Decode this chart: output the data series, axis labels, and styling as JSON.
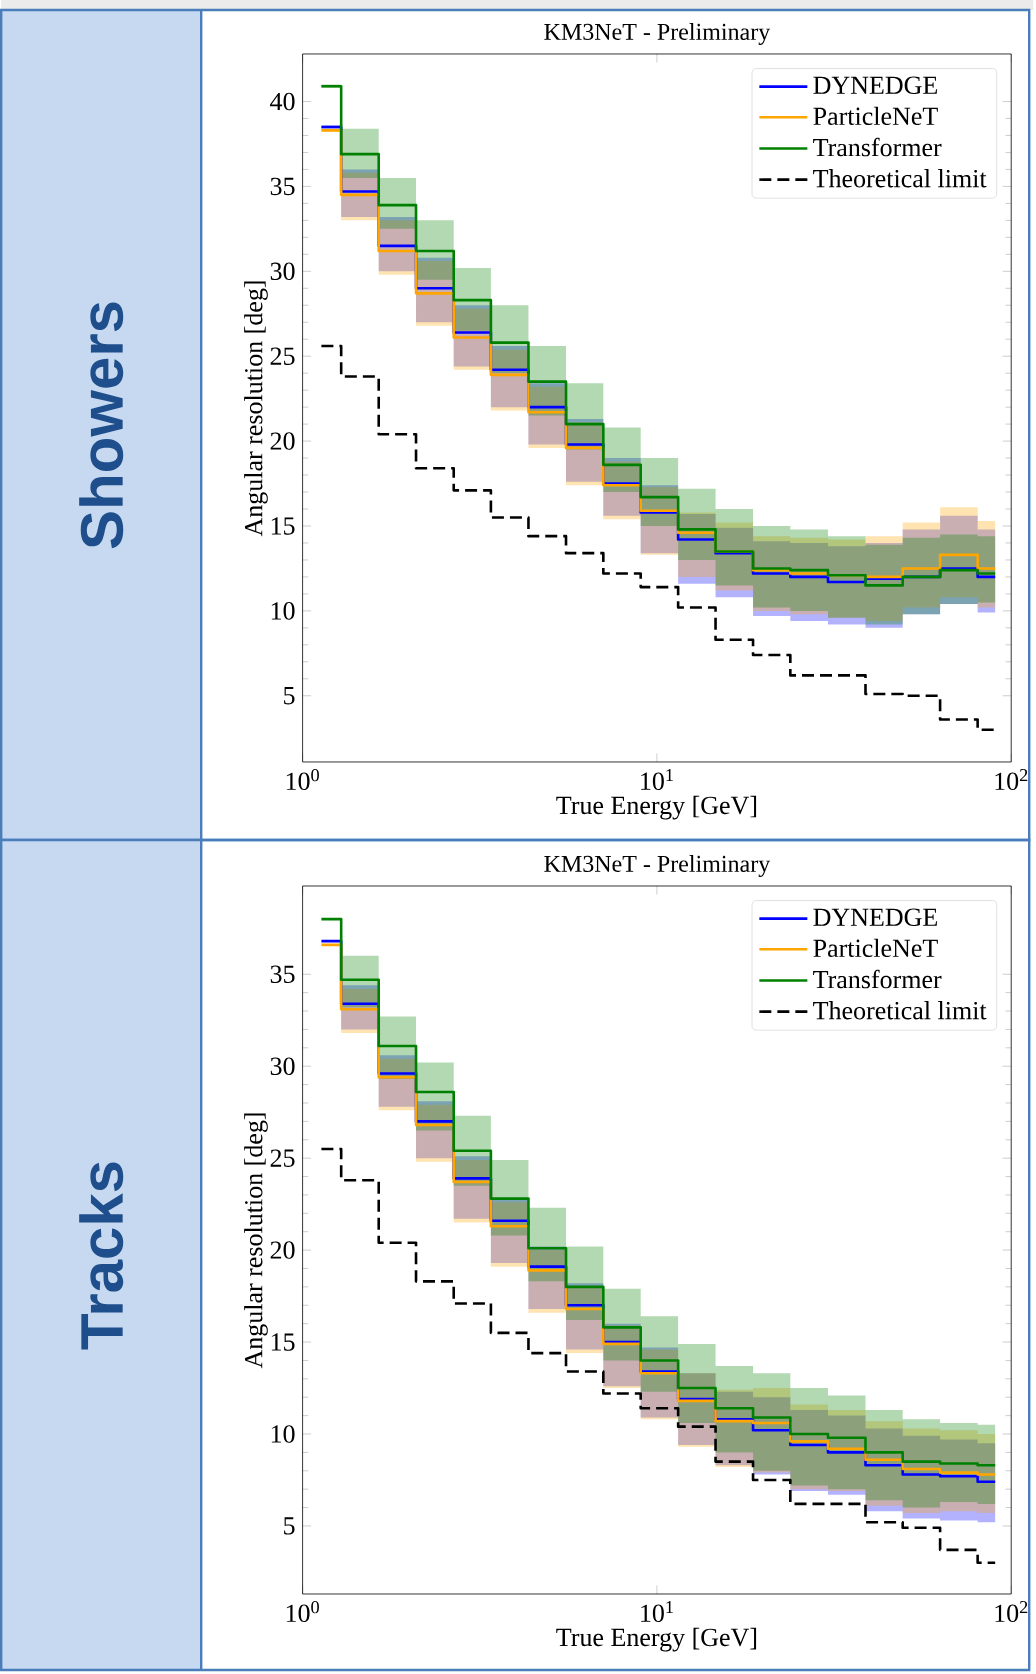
{
  "chart_data": [
    {
      "type": "step",
      "title": "KM3NeT - Preliminary",
      "xlabel": "True Energy [GeV]",
      "ylabel": "Angular resolution [deg]",
      "annotations": [
        "Showers"
      ],
      "log": "x",
      "legend": "top right",
      "xlim": [
        1,
        100
      ],
      "ylim": [
        1.1,
        42.8
      ],
      "xticks": [
        {
          "value": 1,
          "label": "10$^{0}$"
        },
        {
          "value": 10,
          "label": "10$^{1}$"
        },
        {
          "value": 100,
          "label": "10$^{2}$"
        }
      ],
      "yticks": [
        5,
        10,
        15,
        20,
        25,
        30,
        35,
        40
      ],
      "x": [
        1.13,
        1.285,
        1.64,
        2.09,
        2.67,
        3.4,
        4.34,
        5.54,
        7.06,
        9.0,
        11.48,
        14.64,
        18.68,
        23.8,
        30.4,
        38.8,
        49.4,
        63.0,
        80.4,
        90.1
      ],
      "series": [
        {
          "name": "DYNEDGE",
          "color": "#0000ff",
          "values": [
            38.5,
            34.7,
            31.5,
            29.0,
            26.4,
            24.2,
            22.0,
            19.8,
            17.5,
            15.8,
            14.2,
            13.4,
            12.2,
            12.0,
            11.7,
            11.9,
            12.0,
            12.5,
            12.0,
            12.0
          ],
          "lower": [
            38.4,
            33.2,
            30.0,
            27.0,
            24.4,
            22.0,
            19.8,
            17.6,
            15.6,
            13.4,
            11.6,
            10.8,
            9.7,
            9.4,
            9.2,
            9.0,
            9.8,
            10.4,
            9.9,
            9.9
          ],
          "upper": [
            38.6,
            36.0,
            33.2,
            30.8,
            28.0,
            25.6,
            23.4,
            21.3,
            19.0,
            17.4,
            15.7,
            14.9,
            14.1,
            14.0,
            13.8,
            14.0,
            14.8,
            15.6,
            14.8,
            14.8
          ]
        },
        {
          "name": "ParticleNeT",
          "color": "#ffa500",
          "values": [
            38.3,
            34.5,
            31.2,
            28.7,
            26.1,
            23.9,
            21.7,
            19.6,
            17.4,
            15.9,
            14.6,
            13.5,
            12.4,
            12.2,
            12.1,
            12.0,
            12.5,
            13.3,
            12.5,
            12.5
          ],
          "lower": [
            38.2,
            33.0,
            29.8,
            26.8,
            24.2,
            21.8,
            19.6,
            17.4,
            15.4,
            13.3,
            12.0,
            11.2,
            10.0,
            9.8,
            9.6,
            9.4,
            10.2,
            10.8,
            10.2,
            10.2
          ],
          "upper": [
            38.4,
            35.8,
            33.0,
            30.6,
            27.8,
            25.4,
            23.2,
            21.1,
            18.8,
            17.3,
            15.8,
            15.2,
            14.4,
            14.3,
            14.2,
            14.4,
            15.2,
            16.1,
            15.3,
            15.3
          ]
        },
        {
          "name": "Transformer",
          "color": "#008000",
          "values": [
            40.9,
            36.9,
            33.9,
            31.2,
            28.3,
            25.8,
            23.5,
            21.0,
            18.6,
            16.7,
            14.8,
            13.5,
            12.5,
            12.4,
            12.1,
            11.5,
            12.0,
            12.4,
            12.2,
            12.2
          ],
          "lower": [
            40.8,
            35.5,
            32.5,
            29.5,
            26.5,
            24.0,
            21.5,
            19.5,
            17.0,
            15.0,
            13.0,
            11.5,
            10.2,
            10.0,
            9.6,
            9.2,
            9.8,
            10.4,
            10.5,
            10.5
          ],
          "upper": [
            41.0,
            38.4,
            35.5,
            33.0,
            30.2,
            28.0,
            25.6,
            23.4,
            20.8,
            19.0,
            17.2,
            16.0,
            15.0,
            14.8,
            14.4,
            13.9,
            14.3,
            14.5,
            14.4,
            14.4
          ]
        },
        {
          "name": "Theoretical limit",
          "color": "#000000",
          "line_style": "dashed",
          "values": [
            25.6,
            23.8,
            20.4,
            18.4,
            17.1,
            15.5,
            14.4,
            13.4,
            12.2,
            11.4,
            10.2,
            8.3,
            7.4,
            6.2,
            6.2,
            5.1,
            5.0,
            3.6,
            3.0,
            3.0
          ]
        }
      ]
    },
    {
      "type": "step",
      "title": "KM3NeT - Preliminary",
      "xlabel": "True Energy [GeV]",
      "ylabel": "Angular resolution [deg]",
      "annotations": [
        "Tracks"
      ],
      "log": "x",
      "legend": "top right",
      "xlim": [
        1,
        100
      ],
      "ylim": [
        1.3,
        39.8
      ],
      "xticks": [
        {
          "value": 1,
          "label": "10$^{0}$"
        },
        {
          "value": 10,
          "label": "10$^{1}$"
        },
        {
          "value": 100,
          "label": "10$^{2}$"
        }
      ],
      "yticks": [
        5,
        10,
        15,
        20,
        25,
        30,
        35
      ],
      "x": [
        1.13,
        1.285,
        1.64,
        2.09,
        2.67,
        3.4,
        4.34,
        5.54,
        7.06,
        9.0,
        11.48,
        14.64,
        18.68,
        23.8,
        30.4,
        38.8,
        49.4,
        63.0,
        80.4,
        90.1
      ],
      "series": [
        {
          "name": "DYNEDGE",
          "color": "#0000ff",
          "values": [
            36.8,
            33.4,
            29.6,
            27.0,
            23.9,
            21.6,
            19.1,
            17.0,
            15.0,
            13.4,
            11.9,
            10.8,
            10.2,
            9.4,
            9.0,
            8.3,
            7.8,
            7.7,
            7.4,
            7.4
          ],
          "lower": [
            36.8,
            32.0,
            27.8,
            25.0,
            21.7,
            19.3,
            16.8,
            14.6,
            12.6,
            10.9,
            9.4,
            8.3,
            7.8,
            6.9,
            6.7,
            5.8,
            5.4,
            5.3,
            5.2,
            5.2
          ],
          "upper": [
            36.8,
            34.4,
            30.6,
            28.1,
            25.1,
            22.8,
            20.2,
            18.2,
            16.0,
            14.7,
            13.3,
            12.3,
            12.0,
            11.3,
            11.0,
            10.3,
            9.9,
            9.7,
            9.5,
            9.5
          ]
        },
        {
          "name": "ParticleNeT",
          "color": "#ffa500",
          "values": [
            36.6,
            33.1,
            29.4,
            26.8,
            23.7,
            21.3,
            18.9,
            16.8,
            14.9,
            13.3,
            11.8,
            10.7,
            10.6,
            9.6,
            9.2,
            8.6,
            8.1,
            7.9,
            7.8,
            7.8
          ],
          "lower": [
            36.6,
            31.8,
            27.6,
            24.8,
            21.5,
            19.1,
            16.6,
            14.4,
            12.5,
            10.8,
            9.3,
            8.2,
            7.9,
            7.0,
            6.9,
            6.1,
            5.7,
            5.8,
            5.7,
            5.7
          ],
          "upper": [
            36.6,
            34.2,
            30.4,
            27.9,
            24.9,
            22.6,
            20.0,
            18.0,
            15.9,
            14.6,
            13.3,
            12.4,
            12.5,
            11.6,
            11.3,
            10.7,
            10.3,
            10.2,
            10.0,
            10.0
          ]
        },
        {
          "name": "Transformer",
          "color": "#008000",
          "values": [
            38.0,
            34.7,
            31.1,
            28.6,
            25.4,
            22.8,
            20.1,
            18.0,
            15.8,
            14.0,
            12.5,
            11.4,
            10.9,
            10.0,
            9.8,
            9.0,
            8.5,
            8.4,
            8.3,
            8.3
          ],
          "lower": [
            38.0,
            33.2,
            29.3,
            26.5,
            23.5,
            20.8,
            18.3,
            16.2,
            14.0,
            12.3,
            10.6,
            9.0,
            8.0,
            7.2,
            7.0,
            6.4,
            6.0,
            6.3,
            6.2,
            6.2
          ],
          "upper": [
            38.0,
            36.0,
            32.7,
            30.2,
            27.3,
            24.9,
            22.3,
            20.2,
            17.9,
            16.4,
            14.9,
            13.7,
            13.3,
            12.5,
            12.1,
            11.3,
            10.8,
            10.6,
            10.5,
            10.5
          ]
        },
        {
          "name": "Theoretical limit",
          "color": "#000000",
          "line_style": "dashed",
          "values": [
            25.5,
            23.8,
            20.4,
            18.3,
            17.1,
            15.5,
            14.4,
            13.4,
            12.2,
            11.4,
            10.4,
            8.5,
            7.5,
            6.2,
            6.2,
            5.2,
            4.9,
            3.7,
            3.0,
            3.0
          ]
        }
      ]
    }
  ]
}
